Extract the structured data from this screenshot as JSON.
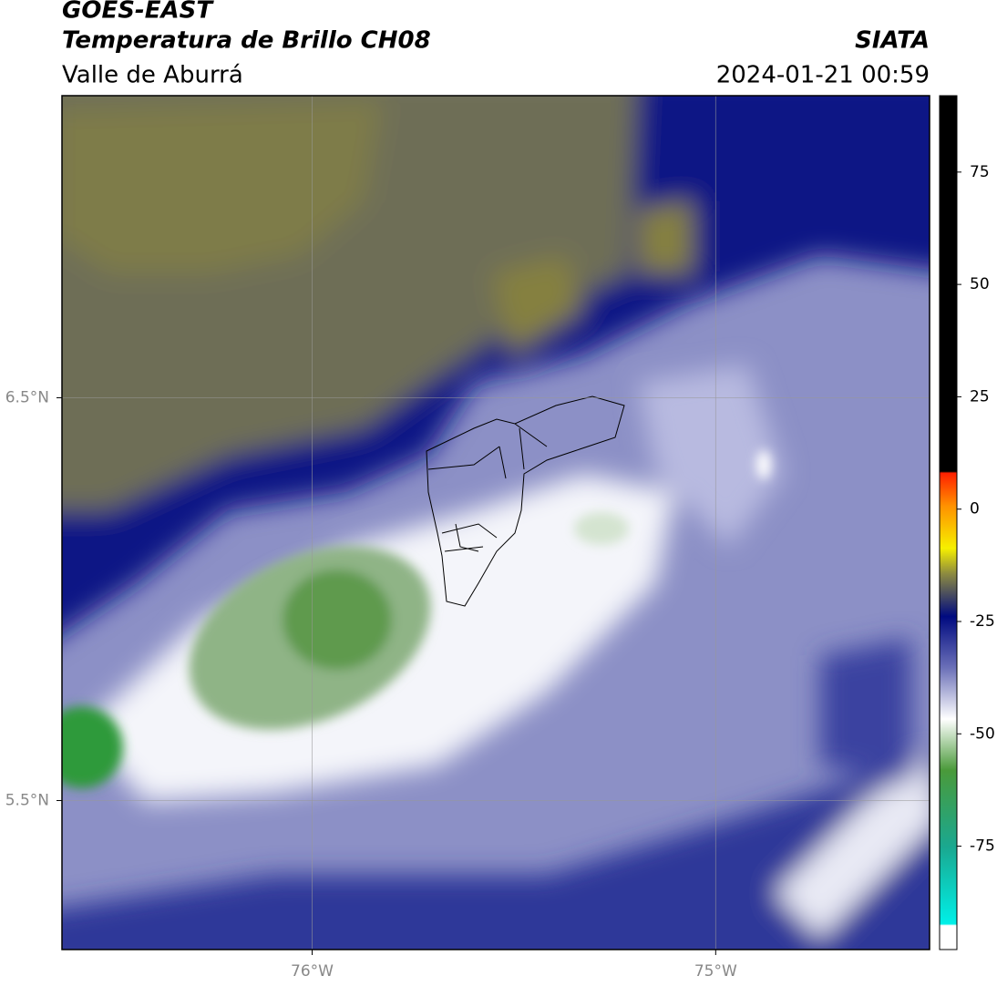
{
  "header": {
    "title": "GOES-EAST",
    "subtitle": "Temperatura de Brillo CH08",
    "region": "Valle de Aburrá",
    "source": "SIATA",
    "datetime": "2024-01-21 00:59"
  },
  "map": {
    "xlim": [
      -76.62,
      -74.47
    ],
    "ylim": [
      5.13,
      7.25
    ],
    "xticks": [
      {
        "value": -76,
        "label": "76°W"
      },
      {
        "value": -75,
        "label": "75°W"
      }
    ],
    "yticks": [
      {
        "value": 6.5,
        "label": "6.5°N"
      },
      {
        "value": 5.5,
        "label": "5.5°N"
      }
    ]
  },
  "colorbar": {
    "lim": [
      -98,
      92
    ],
    "ticks": [
      -75,
      -50,
      -25,
      0,
      25,
      50,
      75
    ]
  }
}
